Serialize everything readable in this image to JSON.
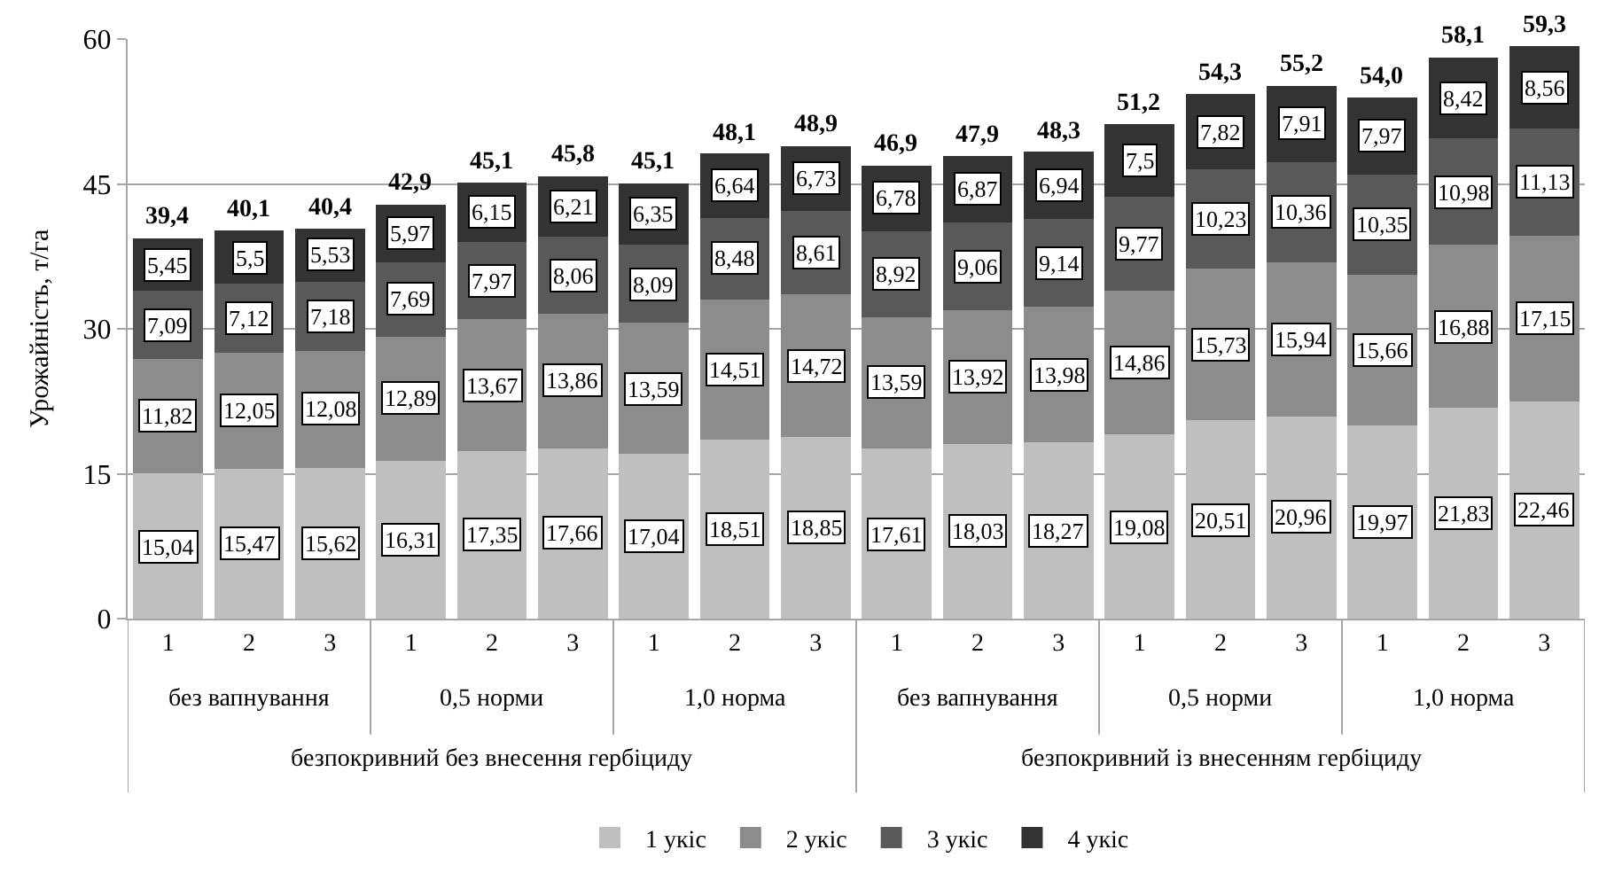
{
  "chart_data": {
    "type": "bar",
    "stacked": true,
    "ylabel": "Урожайність, т/га",
    "categories": [
      "1",
      "2",
      "3",
      "1",
      "2",
      "3",
      "1",
      "2",
      "3",
      "1",
      "2",
      "3",
      "1",
      "2",
      "3",
      "1",
      "2",
      "3"
    ],
    "annotations": [
      "без вапнування",
      "0,5 норми",
      "1,0 норма",
      "без вапнування",
      "0,5 норми",
      "1,0 норма",
      "безпокривний без внесення гербіциду",
      "безпокривний із внесенням гербіциду"
    ],
    "series": [
      {
        "name": "1 укіс",
        "color": "#bfbfbf",
        "values": [
          15.04,
          15.47,
          15.62,
          16.31,
          17.35,
          17.66,
          17.04,
          18.51,
          18.85,
          17.61,
          18.03,
          18.27,
          19.08,
          20.51,
          20.96,
          19.97,
          21.83,
          22.46
        ],
        "value_labels": [
          "15,04",
          "15,47",
          "15,62",
          "16,31",
          "17,35",
          "17,66",
          "17,04",
          "18,51",
          "18,85",
          "17,61",
          "18,03",
          "18,27",
          "19,08",
          "20,51",
          "20,96",
          "19,97",
          "21,83",
          "22,46"
        ]
      },
      {
        "name": "2 укіс",
        "color": "#8c8c8c",
        "values": [
          11.82,
          12.05,
          12.08,
          12.89,
          13.67,
          13.86,
          13.59,
          14.51,
          14.72,
          13.59,
          13.92,
          13.98,
          14.86,
          15.73,
          15.94,
          15.66,
          16.88,
          17.15
        ],
        "value_labels": [
          "11,82",
          "12,05",
          "12,08",
          "12,89",
          "13,67",
          "13,86",
          "13,59",
          "14,51",
          "14,72",
          "13,59",
          "13,92",
          "13,98",
          "14,86",
          "15,73",
          "15,94",
          "15,66",
          "16,88",
          "17,15"
        ]
      },
      {
        "name": "3 укіс",
        "color": "#595959",
        "values": [
          7.09,
          7.12,
          7.18,
          7.69,
          7.97,
          8.06,
          8.09,
          8.48,
          8.61,
          8.92,
          9.06,
          9.14,
          9.77,
          10.23,
          10.36,
          10.35,
          10.98,
          11.13
        ],
        "value_labels": [
          "7,09",
          "7,12",
          "7,18",
          "7,69",
          "7,97",
          "8,06",
          "8,09",
          "8,48",
          "8,61",
          "8,92",
          "9,06",
          "9,14",
          "9,77",
          "10,23",
          "10,36",
          "10,35",
          "10,98",
          "11,13"
        ]
      },
      {
        "name": "4 укіс",
        "color": "#333333",
        "values": [
          5.45,
          5.5,
          5.53,
          5.97,
          6.15,
          6.21,
          6.35,
          6.64,
          6.73,
          6.78,
          6.87,
          6.94,
          7.5,
          7.82,
          7.91,
          7.97,
          8.42,
          8.56
        ],
        "value_labels": [
          "5,45",
          "5,5",
          "5,53",
          "5,97",
          "6,15",
          "6,21",
          "6,35",
          "6,64",
          "6,73",
          "6,78",
          "6,87",
          "6,94",
          "7,5",
          "7,82",
          "7,91",
          "7,97",
          "8,42",
          "8,56"
        ]
      }
    ],
    "totals": [
      "39,4",
      "40,1",
      "40,4",
      "42,9",
      "45,1",
      "45,8",
      "45,1",
      "48,1",
      "48,9",
      "46,9",
      "47,9",
      "48,3",
      "51,2",
      "54,3",
      "55,2",
      "54,0",
      "58,1",
      "59,3"
    ],
    "ylim": [
      0,
      60
    ],
    "yticks": [
      0,
      15,
      30,
      45,
      60
    ],
    "grid": "y",
    "legend": "bottom"
  }
}
